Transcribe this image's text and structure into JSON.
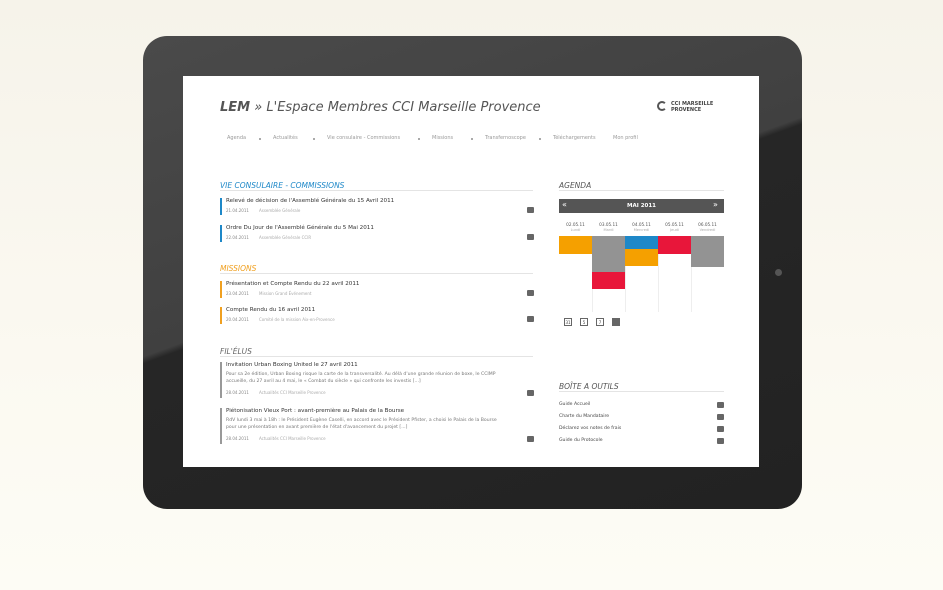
{
  "header": {
    "brand": "LEM",
    "title": "» L'Espace Membres CCI Marseille Provence",
    "logo": [
      "CCI MARSEILLE",
      "PROVENCE"
    ]
  },
  "nav": [
    "Agenda",
    "Actualités",
    "Vie consulaire - Commissions",
    "Missions",
    "Transfernoscope",
    "Téléchargements",
    "Mon profil"
  ],
  "sections": [
    {
      "title": "VIE CONSULAIRE - COMMISSIONS",
      "items": [
        {
          "title": "Relevé de décision de l'Assemblé Générale du 15 Avril 2011",
          "date": "21.04.2011",
          "category": "Assemblée Générale"
        },
        {
          "title": "Ordre Du Jour de l'Assemblé Générale du 5 Mai 2011",
          "date": "22.04.2011",
          "category": "Assemblée Générale CCIR"
        }
      ]
    },
    {
      "title": "MISSIONS",
      "items": [
        {
          "title": "Présentation et Compte Rendu du 22 avril 2011",
          "date": "23.04.2011",
          "category": "Mission Grand Événement"
        },
        {
          "title": "Compte Rendu du 16 avril 2011",
          "date": "20.04.2011",
          "category": "Comité de la mission Aix-en-Provence"
        }
      ]
    },
    {
      "title": "FIL'ÉLUS",
      "items": [
        {
          "title": "Invitation Urban Boxing United le 27 avril 2011",
          "summary": "Pour sa 2e édition, Urban Boxing risque la carte de la transversalité. Au délà d'une grande réunion de boxe, le CCIMP accueille, du 27 avril au 4 mai, le « Combat du siècle » qui confronte les investis [...]",
          "date": "28.04.2011",
          "category": "Actualités CCI Marseille Provence"
        },
        {
          "title": "Piétonisation Vieux Port : avant-première au Palais de la Bourse",
          "summary": "RdV lundi 3 mai à 18h : le Président Eugène Caselli, en accord avec le Président Pfister, a choisi le Palais de la Bourse pour une présentation en avant première de l'état d'avancement du projet [...]",
          "date": "28.04.2011",
          "category": "Actualités CCI Marseille Provence"
        }
      ]
    }
  ],
  "agenda": {
    "title": "AGENDA",
    "prev": "«",
    "month": "MAI 2011",
    "next": "»",
    "days": [
      {
        "date": "02.05.11",
        "day": "Lundi"
      },
      {
        "date": "03.05.11",
        "day": "Mardi"
      },
      {
        "date": "04.05.11",
        "day": "Mercredi"
      },
      {
        "date": "05.05.11",
        "day": "Jeudi"
      },
      {
        "date": "06.05.11",
        "day": "Vendredi"
      }
    ],
    "icons": [
      "31",
      "5",
      "7"
    ]
  },
  "toolbox": {
    "title": "BOÎTE A OUTILS",
    "items": [
      "Guide Accueil",
      "Charte du Mandataire",
      "Déclarez vos notes de frais",
      "Guide du Protocole"
    ]
  }
}
